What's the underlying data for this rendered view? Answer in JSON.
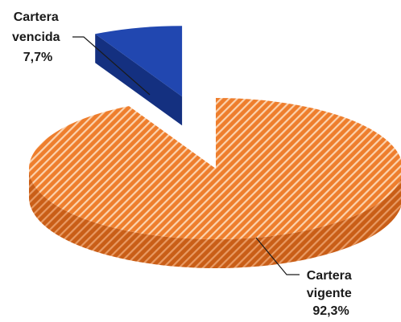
{
  "chart_data": {
    "type": "pie",
    "style": "3d-exploded",
    "slices": [
      {
        "id": "vencida",
        "category": "Cartera vencida",
        "label_lines": [
          "Cartera",
          "vencida",
          "7,7%"
        ],
        "value": 7.7,
        "value_label": "7,7%",
        "color": "#2147b0",
        "pattern": "solid"
      },
      {
        "id": "vigente",
        "category": "Cartera vigente",
        "label_lines": [
          "Cartera",
          "vigente",
          "92,3%"
        ],
        "value": 92.3,
        "value_label": "92,3%",
        "color": "#e8762a",
        "pattern": "diagonal-hatch"
      }
    ]
  }
}
